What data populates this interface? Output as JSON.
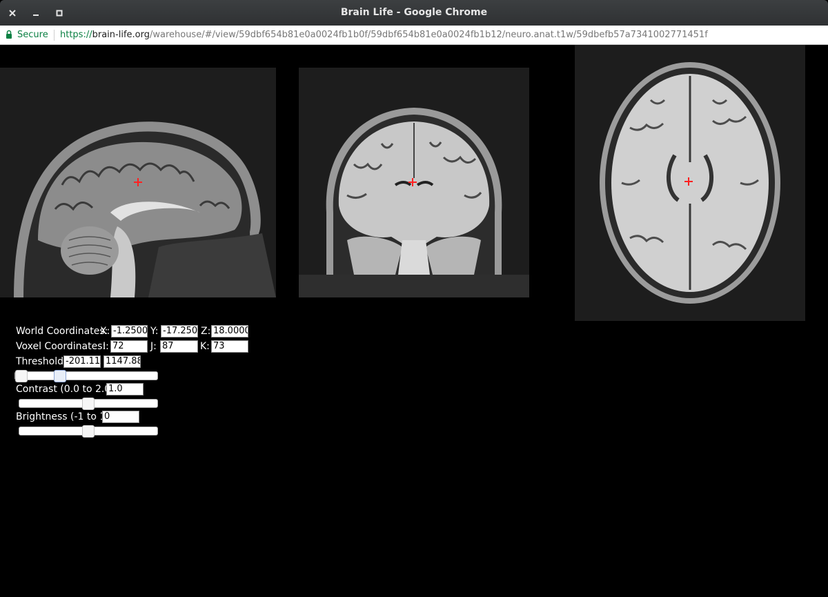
{
  "window": {
    "title": "Brain Life - Google Chrome",
    "buttons": {
      "close": "✕",
      "minimize": "–",
      "maximize": "□"
    }
  },
  "addressbar": {
    "secure_label": "Secure",
    "url_scheme": "https://",
    "url_host": "brain-life.org",
    "url_path": "/warehouse/#/view/59dbf654b81e0a0024fb1b0f/59dbf654b81e0a0024fb1b12/neuro.anat.t1w/59dbefb57a7341002771451f"
  },
  "viewer": {
    "views": [
      "sagittal",
      "coronal",
      "axial"
    ],
    "crosshair_color": "#ff2020"
  },
  "controls": {
    "world": {
      "label": "World Coordinates:",
      "x_label": "X:",
      "x_value": "-1.25000",
      "y_label": "Y:",
      "y_value": "-17.2500",
      "z_label": "Z:",
      "z_value": "18.0000"
    },
    "voxel": {
      "label": "Voxel Coordinates:",
      "i_label": "I:",
      "i_value": "72",
      "j_label": "J:",
      "j_value": "87",
      "k_label": "K:",
      "k_value": "73"
    },
    "threshold": {
      "label": "Threshold:",
      "min_value": "-201.112",
      "max_value": "1147.887",
      "slider_low_fraction": 0.0,
      "slider_high_fraction": 0.3
    },
    "contrast": {
      "label": "Contrast (0.0 to 2.0):",
      "value": "1.0",
      "slider_fraction": 0.5
    },
    "brightness": {
      "label": "Brightness (-1 to 1):",
      "value": "0",
      "slider_fraction": 0.5
    }
  }
}
